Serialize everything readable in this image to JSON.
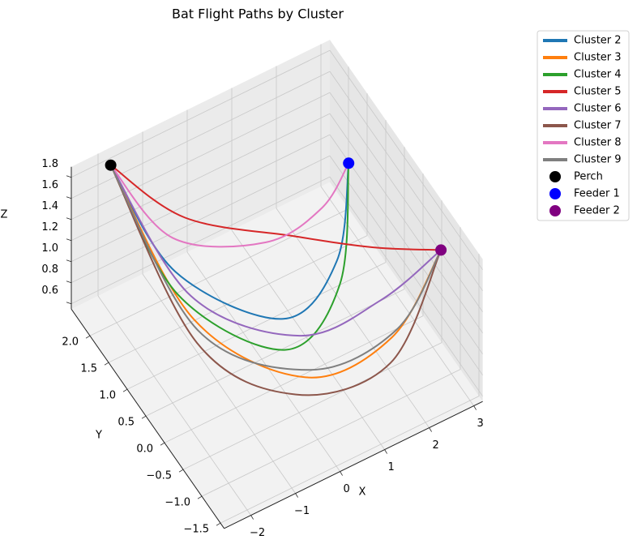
{
  "chart_data": {
    "type": "line3d",
    "title": "Bat Flight Paths by Cluster",
    "x_label": "X",
    "y_label": "Y",
    "z_label": "Z",
    "xlim": [
      -2.6,
      3.2
    ],
    "ylim": [
      -1.6,
      2.5
    ],
    "zlim": [
      0.55,
      1.9
    ],
    "xticks": [
      {
        "value": -2,
        "label": "−2"
      },
      {
        "value": -1,
        "label": "−1"
      },
      0,
      1,
      2,
      3
    ],
    "yticks": [
      {
        "value": -1.5,
        "label": "−1.5"
      },
      {
        "value": -1,
        "label": "−1.0"
      },
      {
        "value": -0.5,
        "label": "−0.5"
      },
      {
        "value": 0,
        "label": "0.0"
      },
      0.5,
      {
        "value": 1,
        "label": "1.0"
      },
      1.5,
      {
        "value": 2,
        "label": "2.0"
      }
    ],
    "zticks": [
      0.6,
      0.8,
      {
        "value": 1,
        "label": "1.0"
      },
      1.2,
      1.4,
      1.6,
      1.8
    ],
    "grid": true,
    "series": [
      {
        "name": "Cluster 2",
        "color": "#1f77b4",
        "x": [
          -1.8,
          -1.1,
          0.4,
          1.6,
          2.2
        ],
        "y": [
          2.4,
          1.5,
          0.4,
          0.4,
          0.8
        ],
        "z": [
          1.8,
          1.1,
          0.9,
          1.2,
          1.8
        ]
      },
      {
        "name": "Cluster 3",
        "color": "#ff7f0e",
        "x": [
          -1.8,
          -1.1,
          0.4,
          2.0,
          3.1
        ],
        "y": [
          2.4,
          1.0,
          -0.2,
          -0.6,
          -0.6
        ],
        "z": [
          1.8,
          0.9,
          0.65,
          0.9,
          1.5
        ]
      },
      {
        "name": "Cluster 4",
        "color": "#2ca02c",
        "x": [
          -1.8,
          -1.2,
          0.2,
          1.5,
          2.2
        ],
        "y": [
          2.4,
          1.3,
          0.1,
          0.2,
          0.8
        ],
        "z": [
          1.8,
          1.0,
          0.8,
          1.1,
          1.8
        ]
      },
      {
        "name": "Cluster 5",
        "color": "#d62728",
        "x": [
          -1.8,
          -0.8,
          0.8,
          2.0,
          3.1
        ],
        "y": [
          2.4,
          1.6,
          0.6,
          -0.1,
          -0.6
        ],
        "z": [
          1.8,
          1.5,
          1.5,
          1.5,
          1.5
        ]
      },
      {
        "name": "Cluster 6",
        "color": "#9467bd",
        "x": [
          -1.8,
          -1.0,
          0.6,
          2.0,
          3.1
        ],
        "y": [
          2.4,
          1.2,
          0.2,
          -0.3,
          -0.6
        ],
        "z": [
          1.8,
          1.0,
          0.8,
          1.1,
          1.5
        ]
      },
      {
        "name": "Cluster 7",
        "color": "#8c564b",
        "x": [
          -1.8,
          -1.2,
          0.1,
          1.8,
          3.1
        ],
        "y": [
          2.4,
          0.8,
          -0.3,
          -0.8,
          -0.6
        ],
        "z": [
          1.8,
          0.8,
          0.6,
          0.8,
          1.5
        ]
      },
      {
        "name": "Cluster 8",
        "color": "#e377c2",
        "x": [
          -1.8,
          -1.0,
          0.5,
          1.6,
          2.2
        ],
        "y": [
          2.4,
          1.7,
          1.0,
          0.8,
          0.8
        ],
        "z": [
          1.8,
          1.3,
          1.3,
          1.5,
          1.8
        ]
      },
      {
        "name": "Cluster 9",
        "color": "#7f7f7f",
        "x": [
          -1.8,
          -1.1,
          0.5,
          2.1,
          3.1
        ],
        "y": [
          2.4,
          0.9,
          -0.2,
          -0.6,
          -0.6
        ],
        "z": [
          1.8,
          0.85,
          0.7,
          0.95,
          1.5
        ]
      }
    ],
    "points": [
      {
        "name": "Perch",
        "color": "#000000",
        "x": -1.8,
        "y": 2.4,
        "z": 1.8
      },
      {
        "name": "Feeder 1",
        "color": "#0000ff",
        "x": 2.2,
        "y": 0.8,
        "z": 1.8
      },
      {
        "name": "Feeder 2",
        "color": "#800080",
        "x": 3.1,
        "y": -0.6,
        "z": 1.5
      }
    ]
  }
}
